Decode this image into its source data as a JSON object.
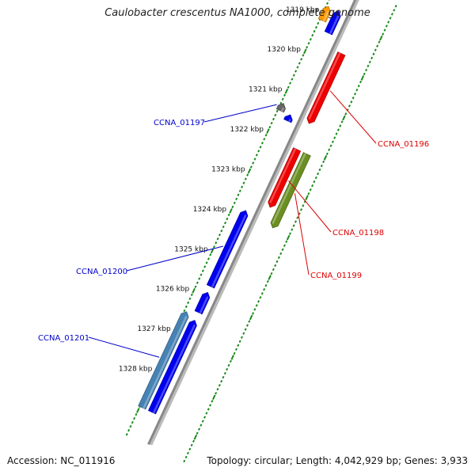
{
  "title": "Caulobacter crescentus NA1000, complete genome",
  "accession": "Accession: NC_011916",
  "topology": "Topology: circular; Length: 4,042,929 bp; Genes: 3,933",
  "colors": {
    "backbone": "#888888",
    "ticks": "#1a8a1a",
    "forward_label": "#0000cc",
    "reverse_label": "#dd0000",
    "blue": "#0000ee",
    "red": "#ee0000",
    "olive": "#6b8e23",
    "orange": "#ff9900",
    "gray": "#666666",
    "steel": "#4682b4"
  },
  "ticks": [
    {
      "kbp": 1319,
      "label": "1319 kbp"
    },
    {
      "kbp": 1320,
      "label": "1320 kbp"
    },
    {
      "kbp": 1321,
      "label": "1321 kbp"
    },
    {
      "kbp": 1322,
      "label": "1322 kbp"
    },
    {
      "kbp": 1323,
      "label": "1323 kbp"
    },
    {
      "kbp": 1324,
      "label": "1324 kbp"
    },
    {
      "kbp": 1325,
      "label": "1325 kbp"
    },
    {
      "kbp": 1326,
      "label": "1326 kbp"
    },
    {
      "kbp": 1327,
      "label": "1327 kbp"
    },
    {
      "kbp": 1328,
      "label": "1328 kbp"
    }
  ],
  "features": [
    {
      "id": "orange-1",
      "label": "",
      "strand": "+",
      "ring": 2,
      "start": 1318.85,
      "end": 1319.2,
      "color": "orange"
    },
    {
      "id": "blue-top",
      "label": "",
      "strand": "+",
      "ring": 1,
      "start": 1318.85,
      "end": 1319.4,
      "color": "blue"
    },
    {
      "id": "CCNA_01196",
      "label": "CCNA_01196",
      "strand": "-",
      "ring": 1,
      "start": 1319.7,
      "end": 1321.45,
      "color": "red"
    },
    {
      "id": "CCNA_01197",
      "label": "CCNA_01197",
      "strand": "+",
      "ring": 2,
      "start": 1321.28,
      "end": 1321.46,
      "color": "gray"
    },
    {
      "id": "blue-small",
      "label": "",
      "strand": "+",
      "ring": 1,
      "start": 1321.45,
      "end": 1321.6,
      "color": "blue"
    },
    {
      "id": "CCNA_01198",
      "label": "CCNA_01198",
      "strand": "-",
      "ring": 1,
      "start": 1322.1,
      "end": 1323.55,
      "color": "red"
    },
    {
      "id": "CCNA_01199",
      "label": "CCNA_01199",
      "strand": "-",
      "ring": 2,
      "start": 1322.1,
      "end": 1323.95,
      "color": "olive"
    },
    {
      "id": "CCNA_01200",
      "label": "CCNA_01200",
      "strand": "+",
      "ring": 1,
      "start": 1323.85,
      "end": 1325.75,
      "color": "blue"
    },
    {
      "id": "blue-mid",
      "label": "",
      "strand": "+",
      "ring": 1,
      "start": 1325.9,
      "end": 1326.4,
      "color": "blue"
    },
    {
      "id": "CCNA_01201",
      "label": "CCNA_01201",
      "strand": "+",
      "ring": 2,
      "start": 1326.5,
      "end": 1328.9,
      "color": "steel"
    },
    {
      "id": "blue-bottom",
      "label": "",
      "strand": "+",
      "ring": 1,
      "start": 1326.6,
      "end": 1328.9,
      "color": "blue"
    }
  ]
}
